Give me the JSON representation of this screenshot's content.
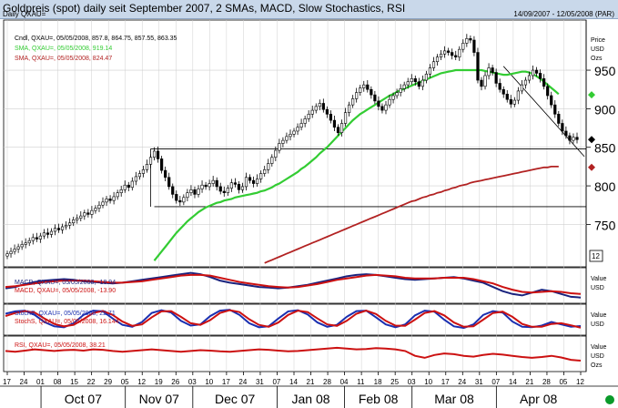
{
  "header": {
    "title": "Goldpreis (spot) daily seit September 2007, 2 SMAs, MACD, Slow Stochastics, RSI",
    "subtitle": "Daily QXAU=",
    "date_range": "14/09/2007 - 12/05/2008 (PAR)"
  },
  "colors": {
    "candle": "#000000",
    "sma_short": "#33cc33",
    "sma_long": "#b22222",
    "macd_line": "#1a237e",
    "macd_signal": "#cc1111",
    "stoch_k": "#1a2fb0",
    "stoch_d": "#cc1111",
    "rsi": "#cc1111",
    "background": "#ffffff",
    "grid": "#cfcfcf",
    "header_bg": "#c9d8ea"
  },
  "chart_data": [
    {
      "type": "line",
      "panel": "price",
      "legend": [
        "Cndl, QXAU=, 05/05/2008, 857.8, 864.75, 857.55, 863.35",
        "SMA, QXAU=, 05/05/2008, 919.14",
        "SMA, QXAU=, 05/05/2008, 824.47"
      ],
      "y_labels": [
        "Price",
        "USD",
        "Ozs"
      ],
      "yticks": [
        750,
        800,
        850,
        900,
        950
      ],
      "ylim": [
        695,
        1015
      ],
      "right_box_label": "12",
      "markers": [
        {
          "value": 918,
          "color": "#33cc33"
        },
        {
          "value": 860,
          "color": "#000000"
        },
        {
          "value": 824,
          "color": "#b22222"
        }
      ],
      "hlines": [
        848,
        773
      ],
      "trendline": [
        [
          135,
          955
        ],
        [
          157,
          838
        ]
      ],
      "series": [
        {
          "name": "Cndl",
          "type": "close",
          "values": [
            712,
            715,
            718,
            721,
            724,
            726,
            729,
            733,
            731,
            735,
            739,
            737,
            741,
            745,
            743,
            747,
            749,
            752,
            756,
            758,
            761,
            765,
            763,
            768,
            771,
            775,
            779,
            783,
            781,
            786,
            791,
            795,
            801,
            798,
            806,
            812,
            816,
            821,
            828,
            837,
            845,
            835,
            820,
            811,
            799,
            789,
            781,
            779,
            785,
            791,
            795,
            789,
            796,
            801,
            799,
            803,
            807,
            799,
            793,
            791,
            797,
            804,
            802,
            795,
            799,
            811,
            807,
            803,
            809,
            816,
            821,
            829,
            837,
            846,
            855,
            859,
            864,
            867,
            871,
            876,
            881,
            887,
            893,
            898,
            903,
            907,
            899,
            893,
            885,
            876,
            869,
            881,
            895,
            905,
            913,
            921,
            927,
            931,
            925,
            918,
            910,
            903,
            898,
            905,
            912,
            917,
            921,
            926,
            931,
            935,
            939,
            935,
            929,
            937,
            945,
            953,
            961,
            967,
            971,
            975,
            973,
            969,
            967,
            977,
            985,
            991,
            989,
            973,
            937,
            929,
            943,
            953,
            947,
            933,
            925,
            919,
            912,
            906,
            911,
            923,
            931,
            937,
            943,
            950,
            946,
            939,
            929,
            917,
            905,
            893,
            881,
            871,
            865,
            859,
            863,
            860
          ]
        },
        {
          "name": "SMA 919.14",
          "values": [
            null,
            null,
            null,
            null,
            null,
            null,
            null,
            null,
            null,
            null,
            null,
            null,
            null,
            null,
            null,
            null,
            null,
            null,
            null,
            null,
            null,
            null,
            null,
            null,
            null,
            null,
            null,
            null,
            null,
            null,
            null,
            null,
            null,
            null,
            null,
            null,
            null,
            null,
            null,
            null,
            703,
            709,
            715,
            721,
            727,
            733,
            739,
            744,
            749,
            754,
            758,
            762,
            766,
            769,
            772,
            774,
            776,
            778,
            779,
            781,
            782,
            783,
            785,
            786,
            787,
            788,
            789,
            790,
            791,
            793,
            794,
            796,
            798,
            801,
            803,
            806,
            809,
            812,
            815,
            818,
            822,
            825,
            829,
            833,
            837,
            842,
            846,
            850,
            855,
            860,
            865,
            870,
            875,
            880,
            885,
            889,
            893,
            896,
            899,
            902,
            905,
            908,
            911,
            914,
            917,
            919,
            922,
            924,
            926,
            928,
            930,
            932,
            934,
            936,
            938,
            940,
            942,
            944,
            946,
            947,
            948,
            949,
            950,
            950,
            950,
            950,
            950,
            950,
            950,
            950,
            949,
            948,
            947,
            946,
            945,
            944,
            944,
            945,
            946,
            947,
            948,
            948,
            947,
            945,
            942,
            939,
            935,
            931,
            927,
            923,
            919
          ]
        },
        {
          "name": "SMA 824.47",
          "values": [
            null,
            null,
            null,
            null,
            null,
            null,
            null,
            null,
            null,
            null,
            null,
            null,
            null,
            null,
            null,
            null,
            null,
            null,
            null,
            null,
            null,
            null,
            null,
            null,
            null,
            null,
            null,
            null,
            null,
            null,
            null,
            null,
            null,
            null,
            null,
            null,
            null,
            null,
            null,
            null,
            null,
            null,
            null,
            null,
            null,
            null,
            null,
            null,
            null,
            null,
            null,
            null,
            null,
            null,
            null,
            null,
            null,
            null,
            null,
            null,
            null,
            null,
            null,
            null,
            null,
            null,
            null,
            null,
            null,
            null,
            700,
            702,
            704,
            706,
            708,
            710,
            712,
            714,
            716,
            718,
            720,
            722,
            724,
            726,
            728,
            730,
            732,
            734,
            736,
            738,
            740,
            742,
            744,
            746,
            748,
            750,
            752,
            754,
            756,
            758,
            760,
            762,
            764,
            766,
            768,
            770,
            772,
            774,
            776,
            778,
            780,
            781,
            783,
            785,
            786,
            788,
            789,
            791,
            792,
            794,
            795,
            797,
            798,
            800,
            801,
            802,
            804,
            805,
            806,
            807,
            808,
            809,
            810,
            811,
            812,
            813,
            814,
            815,
            816,
            817,
            818,
            819,
            820,
            821,
            822,
            823,
            824,
            824,
            825,
            825,
            825
          ]
        }
      ]
    },
    {
      "type": "line",
      "panel": "macd",
      "legend": [
        "MACD, QXAU=, 05/05/2008, -18.94",
        "MACD, QXAU=, 05/05/2008, -13.90"
      ],
      "y_labels": [
        "Value",
        "USD"
      ],
      "series": [
        {
          "name": "MACD -18.94",
          "values": [
            -6,
            -4,
            0,
            3,
            5,
            6,
            7,
            6,
            4,
            3,
            2,
            1,
            2,
            4,
            6,
            8,
            10,
            12,
            14,
            16,
            14,
            10,
            5,
            2,
            0,
            -2,
            -4,
            -5,
            -6,
            -5,
            -3,
            -1,
            2,
            5,
            8,
            11,
            13,
            14,
            13,
            11,
            9,
            7,
            6,
            7,
            8,
            9,
            10,
            8,
            5,
            2,
            -4,
            -10,
            -14,
            -16,
            -12,
            -8,
            -10,
            -14,
            -18,
            -19
          ]
        },
        {
          "name": "MACD -13.90",
          "values": [
            -4,
            -3,
            -1,
            1,
            3,
            4,
            5,
            5,
            5,
            4,
            3,
            2,
            2,
            3,
            4,
            6,
            8,
            10,
            12,
            13,
            13,
            12,
            9,
            6,
            3,
            1,
            -1,
            -3,
            -4,
            -5,
            -4,
            -2,
            0,
            3,
            6,
            8,
            10,
            12,
            13,
            12,
            11,
            9,
            8,
            8,
            8,
            9,
            9,
            9,
            7,
            4,
            1,
            -4,
            -8,
            -11,
            -12,
            -11,
            -10,
            -11,
            -13,
            -14
          ]
        }
      ]
    },
    {
      "type": "line",
      "panel": "stochastics",
      "legend": [
        "StochS, QXAU=, 05/05/2008, 22.71",
        "StochS, QXAU=, 05/05/2008, 16.144"
      ],
      "y_labels": [
        "Value",
        "USD"
      ],
      "series": [
        {
          "name": "StochS 22.71",
          "values": [
            75,
            85,
            88,
            70,
            40,
            22,
            18,
            35,
            70,
            88,
            85,
            55,
            28,
            20,
            40,
            78,
            90,
            80,
            45,
            25,
            30,
            65,
            88,
            92,
            70,
            35,
            18,
            22,
            55,
            85,
            90,
            72,
            38,
            20,
            28,
            62,
            86,
            88,
            60,
            30,
            18,
            30,
            68,
            88,
            84,
            50,
            22,
            15,
            30,
            70,
            86,
            80,
            42,
            20,
            18,
            25,
            40,
            30,
            20,
            23
          ]
        },
        {
          "name": "StochS 16.144",
          "values": [
            65,
            78,
            86,
            80,
            55,
            32,
            22,
            28,
            52,
            78,
            87,
            70,
            42,
            24,
            30,
            60,
            85,
            86,
            62,
            35,
            28,
            48,
            78,
            90,
            82,
            52,
            28,
            20,
            38,
            70,
            88,
            82,
            55,
            30,
            24,
            45,
            75,
            88,
            74,
            45,
            25,
            24,
            50,
            78,
            86,
            68,
            38,
            20,
            22,
            50,
            78,
            84,
            62,
            32,
            20,
            20,
            32,
            35,
            26,
            16
          ]
        }
      ]
    },
    {
      "type": "line",
      "panel": "rsi",
      "legend": [
        "RSI, QXAU=, 05/05/2008, 38.21"
      ],
      "y_labels": [
        "Value",
        "USD",
        "Ozs"
      ],
      "series": [
        {
          "name": "RSI",
          "values": [
            62,
            60,
            63,
            66,
            64,
            62,
            64,
            65,
            63,
            66,
            65,
            62,
            60,
            62,
            64,
            66,
            64,
            62,
            60,
            62,
            64,
            63,
            61,
            60,
            62,
            64,
            66,
            65,
            63,
            61,
            62,
            64,
            66,
            68,
            70,
            68,
            66,
            67,
            69,
            68,
            66,
            62,
            50,
            45,
            52,
            56,
            54,
            50,
            48,
            52,
            55,
            53,
            50,
            47,
            45,
            47,
            50,
            46,
            40,
            38
          ]
        }
      ]
    }
  ],
  "x_axis": {
    "day_ticks": [
      "17",
      "24",
      "01",
      "08",
      "15",
      "22",
      "29",
      "05",
      "12",
      "19",
      "26",
      "03",
      "10",
      "17",
      "24",
      "31",
      "07",
      "14",
      "21",
      "28",
      "04",
      "11",
      "18",
      "25",
      "03",
      "10",
      "17",
      "24",
      "31",
      "07",
      "14",
      "21",
      "28",
      "05",
      "12"
    ],
    "months": [
      "Oct 07",
      "Nov 07",
      "Dec 07",
      "Jan 08",
      "Feb 08",
      "Mar 08",
      "Apr 08"
    ]
  }
}
